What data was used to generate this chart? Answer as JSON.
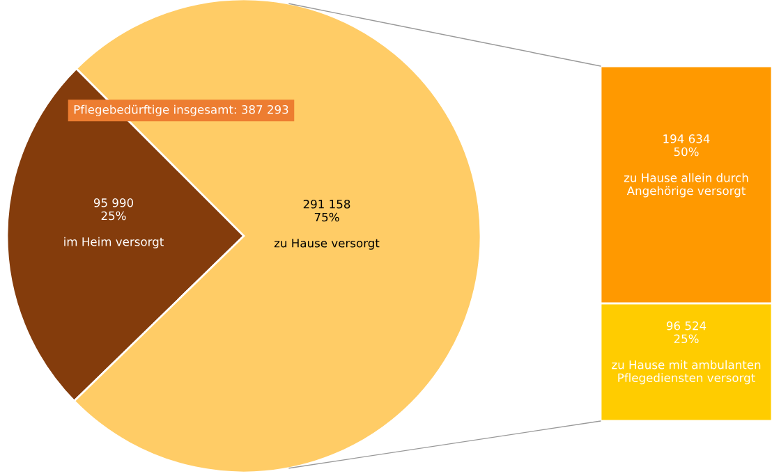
{
  "chart_data": [
    {
      "type": "pie",
      "categories": [
        "im Heim versorgt",
        "zu Hause versorgt"
      ],
      "values": [
        95990,
        291158
      ],
      "colors": [
        "#843c0c",
        "#ffcc66"
      ],
      "value_labels": [
        "95 990\n25%",
        "291 158\n75%"
      ],
      "annotations": [
        "Pflegebedürftige insgesamt: 387 293"
      ],
      "legend": false
    },
    {
      "type": "bar",
      "stacked": true,
      "categories": [
        null
      ],
      "series": [
        {
          "name": "zu Hause mit ambulanten\nPflegediensten versorgt",
          "color": "#ffcc00",
          "values": [
            96524
          ],
          "value_labels": [
            "96 524\n25%"
          ]
        },
        {
          "name": "zu Hause allein durch\nAngehörige versorgt",
          "color": "#ff9900",
          "values": [
            194634
          ],
          "value_labels": [
            "194 634\n50%"
          ]
        }
      ],
      "legend": false
    }
  ]
}
